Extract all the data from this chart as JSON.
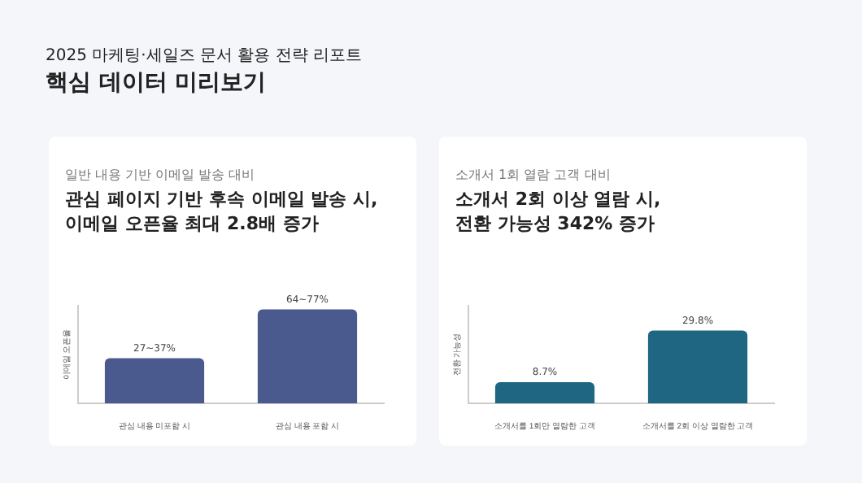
{
  "chart_data": [
    {
      "type": "bar",
      "annotations": [
        "2025 마케팅·세일즈 문서 활용 전략 리포트",
        "핵심 데이터 미리보기"
      ],
      "subtitle": "일반 내용 기반 이메일 발송 대비",
      "title": "관심 페이지 기반 후속 이메일 발송 시,\n이메일 오픈율 최대 2.8배 증가",
      "ylabel": "이메일 오픈율",
      "categories": [
        "관심 내용 미포함 시",
        "관심 내용 포함 시"
      ],
      "values": [
        37,
        77
      ],
      "value_labels": [
        "27~37%",
        "64~77%"
      ],
      "color": "#4a5a8f",
      "tick_labels": "x"
    },
    {
      "type": "bar",
      "subtitle": "소개서 1회 열람 고객 대비",
      "title": "소개서 2회 이상 열람 시,\n전환 가능성 342% 증가",
      "ylabel": "전환 가능성",
      "categories": [
        "소개서를 1회만 열람한 고객",
        "소개서를 2회 이상 열람한 고객"
      ],
      "values": [
        8.7,
        29.8
      ],
      "value_labels": [
        "8.7%",
        "29.8%"
      ],
      "color": "#1f6683",
      "tick_labels": "x"
    }
  ]
}
